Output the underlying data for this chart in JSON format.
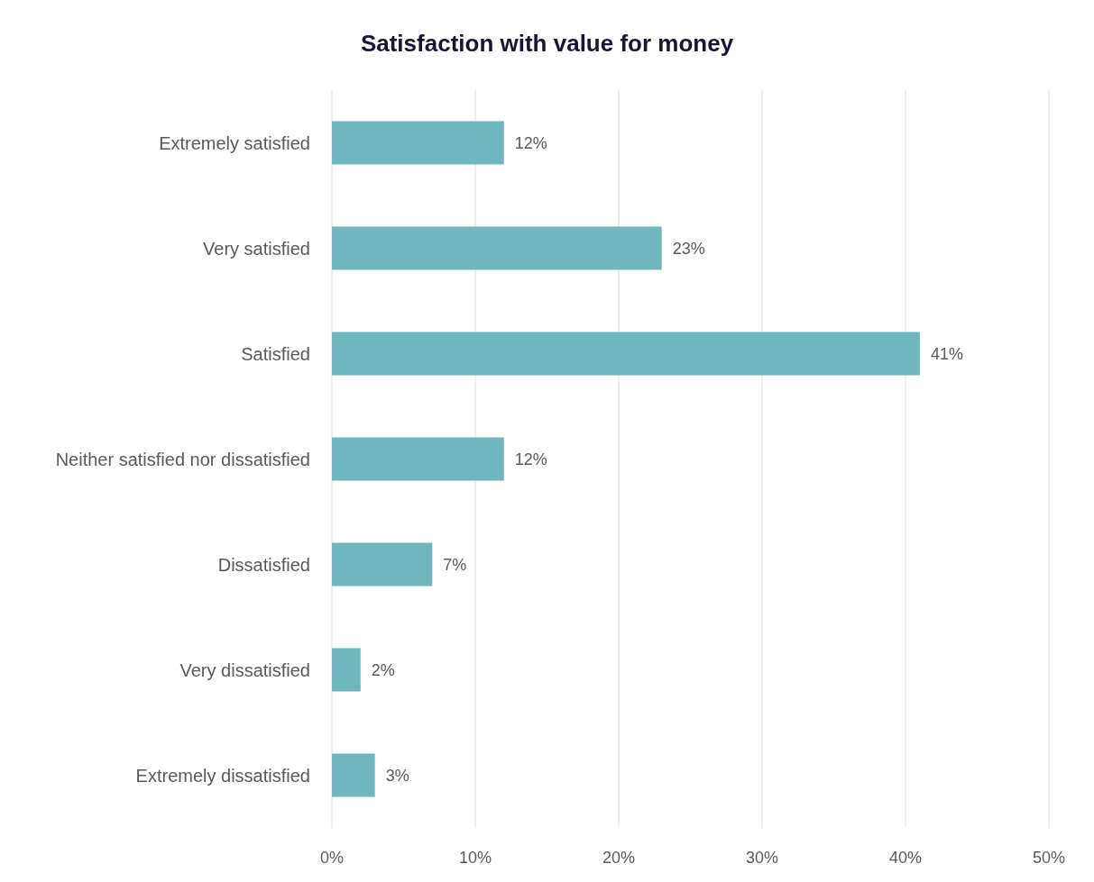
{
  "chart_data": {
    "type": "bar",
    "orientation": "horizontal",
    "title": "Satisfaction with value for money",
    "categories": [
      "Extremely satisfied",
      "Very satisfied",
      "Satisfied",
      "Neither satisfied nor dissatisfied",
      "Dissatisfied",
      "Very dissatisfied",
      "Extremely dissatisfied"
    ],
    "values": [
      12,
      23,
      41,
      12,
      7,
      2,
      3
    ],
    "value_labels": [
      "12%",
      "23%",
      "41%",
      "12%",
      "7%",
      "2%",
      "3%"
    ],
    "color": "#6fb6bf",
    "xlim": [
      0,
      50
    ],
    "xticks": [
      {
        "value": 0,
        "label": "0%"
      },
      {
        "value": 10,
        "label": "10%"
      },
      {
        "value": 20,
        "label": "20%"
      },
      {
        "value": 30,
        "label": "30%"
      },
      {
        "value": 40,
        "label": "40%"
      },
      {
        "value": 50,
        "label": "50%"
      }
    ],
    "grid": "x"
  }
}
